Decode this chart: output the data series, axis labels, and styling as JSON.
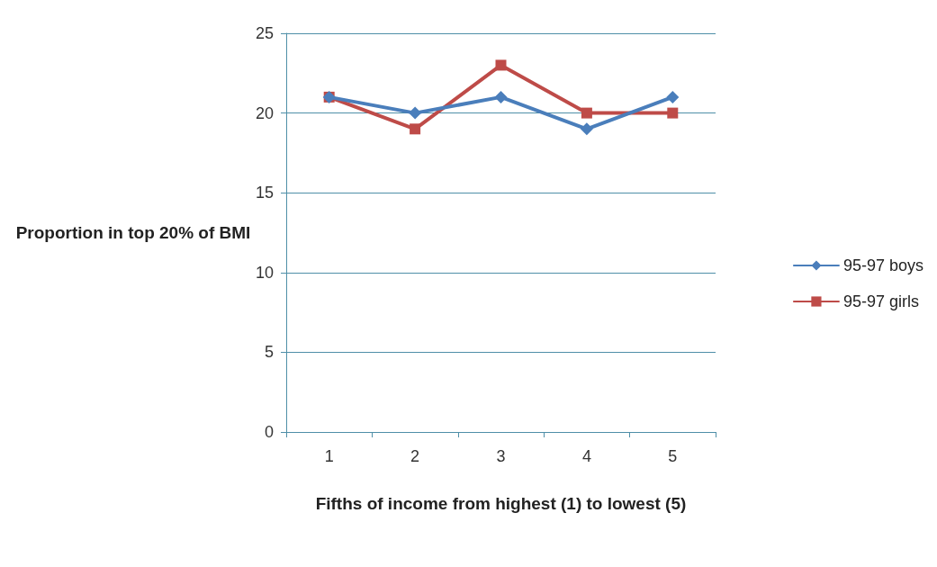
{
  "chart_data": {
    "type": "line",
    "xlabel": "Fifths of income from highest (1) to lowest (5)",
    "ylabel": "Proportion in top 20% of BMI",
    "categories": [
      "1",
      "2",
      "3",
      "4",
      "5"
    ],
    "series": [
      {
        "name": "95-97 boys",
        "color": "#4a7ebb",
        "marker": "diamond",
        "values": [
          21,
          20,
          21,
          19,
          21
        ]
      },
      {
        "name": "95-97 girls",
        "color": "#be4b48",
        "marker": "square",
        "values": [
          21,
          19,
          23,
          20,
          20
        ]
      }
    ],
    "ylim": [
      0,
      25
    ],
    "yticks": [
      0,
      5,
      10,
      15,
      20,
      25
    ],
    "grid": "y",
    "legend": "right"
  }
}
